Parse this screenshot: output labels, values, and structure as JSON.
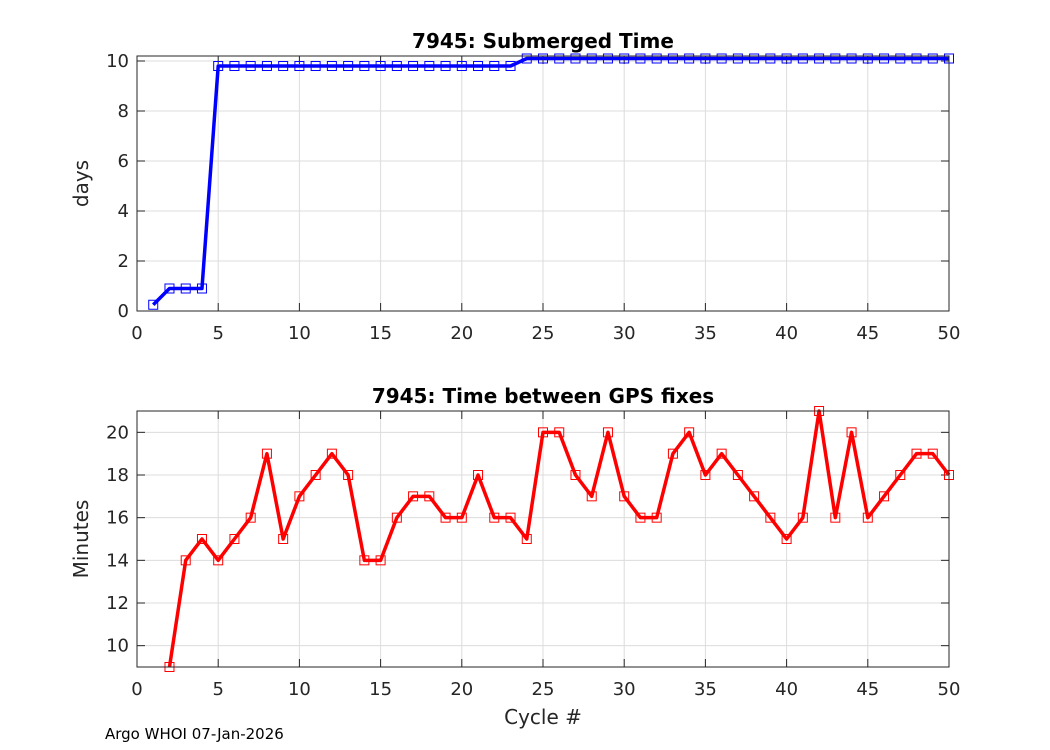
{
  "footer": "Argo WHOI 07-Jan-2026",
  "colors": {
    "top_series": "#0000ff",
    "bottom_series": "#ff0000",
    "grid": "#dcdcdc",
    "axis": "#262626"
  },
  "chart_data": [
    {
      "type": "line",
      "title": "7945: Submerged Time",
      "xlabel": "",
      "ylabel": "days",
      "xlim": [
        0,
        50
      ],
      "ylim": [
        0,
        10.2
      ],
      "xticks": [
        0,
        5,
        10,
        15,
        20,
        25,
        30,
        35,
        40,
        45,
        50
      ],
      "yticks": [
        0,
        2,
        4,
        6,
        8,
        10
      ],
      "grid": true,
      "marker": "square",
      "series": [
        {
          "name": "Submerged Time",
          "x": [
            1,
            2,
            3,
            4,
            5,
            6,
            7,
            8,
            9,
            10,
            11,
            12,
            13,
            14,
            15,
            16,
            17,
            18,
            19,
            20,
            21,
            22,
            23,
            24,
            25,
            26,
            27,
            28,
            29,
            30,
            31,
            32,
            33,
            34,
            35,
            36,
            37,
            38,
            39,
            40,
            41,
            42,
            43,
            44,
            45,
            46,
            47,
            48,
            49,
            50
          ],
          "y": [
            0.25,
            0.9,
            0.9,
            0.9,
            9.8,
            9.8,
            9.8,
            9.8,
            9.8,
            9.8,
            9.8,
            9.8,
            9.8,
            9.8,
            9.8,
            9.8,
            9.8,
            9.8,
            9.8,
            9.8,
            9.8,
            9.8,
            9.8,
            10.1,
            10.1,
            10.1,
            10.1,
            10.1,
            10.1,
            10.1,
            10.1,
            10.1,
            10.1,
            10.1,
            10.1,
            10.1,
            10.1,
            10.1,
            10.1,
            10.1,
            10.1,
            10.1,
            10.1,
            10.1,
            10.1,
            10.1,
            10.1,
            10.1,
            10.1,
            10.1
          ]
        }
      ]
    },
    {
      "type": "line",
      "title": "7945: Time between GPS fixes",
      "xlabel": "Cycle #",
      "ylabel": "Minutes",
      "xlim": [
        0,
        50
      ],
      "ylim": [
        9,
        21
      ],
      "xticks": [
        0,
        5,
        10,
        15,
        20,
        25,
        30,
        35,
        40,
        45,
        50
      ],
      "yticks": [
        10,
        12,
        14,
        16,
        18,
        20
      ],
      "grid": true,
      "marker": "square",
      "series": [
        {
          "name": "Time between GPS fixes",
          "x": [
            2,
            3,
            4,
            5,
            6,
            7,
            8,
            9,
            10,
            11,
            12,
            13,
            14,
            15,
            16,
            17,
            18,
            19,
            20,
            21,
            22,
            23,
            24,
            25,
            26,
            27,
            28,
            29,
            30,
            31,
            32,
            33,
            34,
            35,
            36,
            37,
            38,
            39,
            40,
            41,
            42,
            43,
            44,
            45,
            46,
            47,
            48,
            49,
            50
          ],
          "y": [
            9,
            14,
            15,
            14,
            15,
            16,
            19,
            15,
            17,
            18,
            19,
            18,
            14,
            14,
            16,
            17,
            17,
            16,
            16,
            18,
            16,
            16,
            15,
            20,
            20,
            18,
            17,
            20,
            17,
            16,
            16,
            19,
            20,
            18,
            19,
            18,
            17,
            16,
            15,
            16,
            21,
            16,
            20,
            16,
            17,
            18,
            19,
            19,
            18
          ]
        }
      ]
    }
  ]
}
